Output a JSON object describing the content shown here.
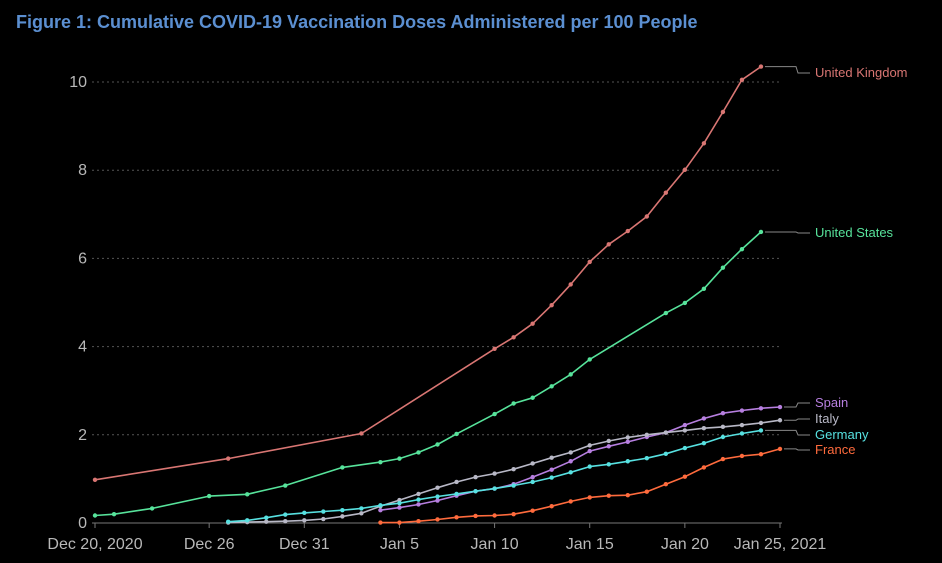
{
  "chart_data": {
    "type": "line",
    "title": "Figure 1: Cumulative COVID-19 Vaccination Doses Administered per 100 People",
    "xlabel": "",
    "ylabel": "",
    "ylim": [
      0,
      10.5
    ],
    "yticks": [
      0,
      2,
      4,
      6,
      8,
      10
    ],
    "x_ticks": [
      {
        "day": 0,
        "label": "Dec 20, 2020"
      },
      {
        "day": 6,
        "label": "Dec 26"
      },
      {
        "day": 11,
        "label": "Dec 31"
      },
      {
        "day": 16,
        "label": "Jan 5"
      },
      {
        "day": 21,
        "label": "Jan 10"
      },
      {
        "day": 26,
        "label": "Jan 15"
      },
      {
        "day": 31,
        "label": "Jan 20"
      },
      {
        "day": 36,
        "label": "Jan 25, 2021"
      }
    ],
    "x_note": "x values are days since Dec 20, 2020",
    "grid": "horizontal dotted",
    "series": [
      {
        "name": "United Kingdom",
        "color": "#d97673",
        "x": [
          0,
          7,
          14,
          21,
          22,
          23,
          24,
          25,
          26,
          27,
          28,
          29,
          30,
          31,
          32,
          33,
          34,
          35
        ],
        "y": [
          0.98,
          1.46,
          2.03,
          3.95,
          4.21,
          4.52,
          4.94,
          5.41,
          5.92,
          6.32,
          6.62,
          6.95,
          7.49,
          8.01,
          8.61,
          9.32,
          10.05,
          10.35
        ]
      },
      {
        "name": "United States",
        "color": "#57e39b",
        "x": [
          0,
          1,
          3,
          6,
          8,
          10,
          13,
          15,
          16,
          17,
          18,
          19,
          21,
          22,
          23,
          24,
          25,
          26,
          30,
          31,
          32,
          33,
          34,
          35
        ],
        "y": [
          0.17,
          0.2,
          0.33,
          0.61,
          0.65,
          0.85,
          1.26,
          1.38,
          1.46,
          1.6,
          1.78,
          2.02,
          2.47,
          2.71,
          2.84,
          3.1,
          3.37,
          3.71,
          4.76,
          4.99,
          5.31,
          5.79,
          6.21,
          6.6
        ]
      },
      {
        "name": "Spain",
        "color": "#b77fe0",
        "x": [
          15,
          16,
          17,
          18,
          19,
          20,
          21,
          22,
          23,
          24,
          25,
          26,
          27,
          28,
          29,
          30,
          31,
          32,
          33,
          34,
          35,
          36
        ],
        "y": [
          0.29,
          0.35,
          0.42,
          0.51,
          0.62,
          0.72,
          0.78,
          0.88,
          1.04,
          1.21,
          1.4,
          1.63,
          1.74,
          1.84,
          1.95,
          2.05,
          2.22,
          2.37,
          2.49,
          2.55,
          2.6,
          2.63
        ]
      },
      {
        "name": "Italy",
        "color": "#b8b8c6",
        "x": [
          7,
          8,
          9,
          10,
          11,
          12,
          13,
          14,
          15,
          16,
          17,
          18,
          19,
          20,
          21,
          22,
          23,
          24,
          25,
          26,
          27,
          28,
          29,
          30,
          31,
          32,
          33,
          34,
          35,
          36
        ],
        "y": [
          0.01,
          0.02,
          0.03,
          0.04,
          0.06,
          0.09,
          0.15,
          0.22,
          0.38,
          0.52,
          0.66,
          0.8,
          0.93,
          1.04,
          1.12,
          1.22,
          1.35,
          1.48,
          1.6,
          1.76,
          1.86,
          1.94,
          2.0,
          2.05,
          2.1,
          2.15,
          2.18,
          2.22,
          2.27,
          2.33
        ]
      },
      {
        "name": "Germany",
        "color": "#57e1e1",
        "x": [
          7,
          8,
          9,
          10,
          11,
          12,
          13,
          14,
          15,
          16,
          17,
          18,
          19,
          20,
          21,
          22,
          23,
          24,
          25,
          26,
          27,
          28,
          29,
          30,
          31,
          32,
          33,
          34,
          35
        ],
        "y": [
          0.03,
          0.06,
          0.12,
          0.19,
          0.23,
          0.26,
          0.29,
          0.33,
          0.4,
          0.45,
          0.53,
          0.6,
          0.66,
          0.72,
          0.78,
          0.85,
          0.93,
          1.03,
          1.15,
          1.28,
          1.33,
          1.4,
          1.47,
          1.57,
          1.7,
          1.81,
          1.95,
          2.03,
          2.1
        ]
      },
      {
        "name": "France",
        "color": "#ff6b3d",
        "x": [
          15,
          16,
          17,
          18,
          19,
          20,
          21,
          22,
          23,
          24,
          25,
          26,
          27,
          28,
          29,
          30,
          31,
          32,
          33,
          34,
          35,
          36
        ],
        "y": [
          0.01,
          0.01,
          0.04,
          0.08,
          0.13,
          0.16,
          0.17,
          0.2,
          0.28,
          0.38,
          0.49,
          0.58,
          0.62,
          0.63,
          0.71,
          0.88,
          1.05,
          1.26,
          1.45,
          1.52,
          1.56,
          1.68
        ]
      }
    ]
  }
}
